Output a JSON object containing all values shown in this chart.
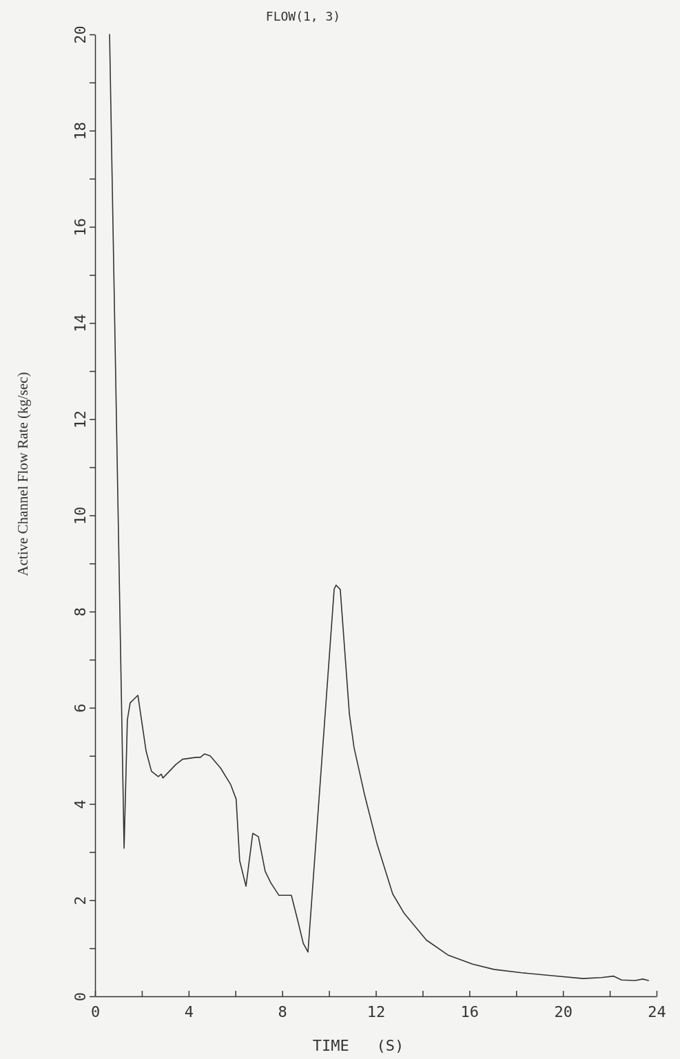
{
  "chart_data": {
    "type": "line",
    "title": "FLOW(1, 3)",
    "xlabel": "TIME   (S)",
    "ylabel": "Active Channel Flow Rate (kg/sec)",
    "xlim": [
      0,
      24
    ],
    "ylim": [
      0,
      20
    ],
    "xticks": [
      0,
      {
        "value": 2,
        "label": null
      },
      4,
      {
        "value": 6,
        "label": null
      },
      8,
      {
        "value": 10,
        "label": null
      },
      12,
      {
        "value": 14,
        "label": null
      },
      16,
      {
        "value": 18,
        "label": null
      },
      20,
      {
        "value": 22,
        "label": null
      },
      24
    ],
    "yticks": [
      0,
      {
        "value": 1,
        "label": null
      },
      2,
      {
        "value": 3,
        "label": null
      },
      4,
      {
        "value": 5,
        "label": null
      },
      6,
      {
        "value": 7,
        "label": null
      },
      8,
      {
        "value": 9,
        "label": null
      },
      10,
      {
        "value": 11,
        "label": null
      },
      12,
      {
        "value": 13,
        "label": null
      },
      14,
      {
        "value": 15,
        "label": null
      },
      16,
      {
        "value": 17,
        "label": null
      },
      18,
      {
        "value": 19,
        "label": null
      },
      20
    ],
    "grid": false,
    "marker": "none",
    "line_style": "solid",
    "series": [
      {
        "color": "#333333",
        "x": [
          0.62,
          1.24,
          1.38,
          1.5,
          1.83,
          2.18,
          2.41,
          2.7,
          2.83,
          2.9,
          3.45,
          3.74,
          4.33,
          4.5,
          4.68,
          4.92,
          5.36,
          5.8,
          6.03,
          6.18,
          6.45,
          6.74,
          6.98,
          7.27,
          7.51,
          7.86,
          8.39,
          8.65,
          8.9,
          9.1,
          10.22,
          10.3,
          10.48,
          10.87,
          11.07,
          11.51,
          12.04,
          12.72,
          13.22,
          14.16,
          15.08,
          16.14,
          17.05,
          18.23,
          19.55,
          20.85,
          21.64,
          22.17,
          22.5,
          23.09,
          23.41,
          23.65
        ],
        "values": [
          20,
          3.08,
          5.75,
          6.1,
          6.26,
          5.1,
          4.68,
          4.57,
          4.62,
          4.54,
          4.82,
          4.93,
          4.97,
          4.97,
          5.04,
          5.0,
          4.75,
          4.4,
          4.1,
          2.82,
          2.29,
          3.39,
          3.32,
          2.6,
          2.36,
          2.1,
          2.1,
          1.6,
          1.1,
          0.92,
          8.47,
          8.55,
          8.46,
          5.87,
          5.17,
          4.21,
          3.19,
          2.13,
          1.72,
          1.17,
          0.86,
          0.67,
          0.56,
          0.49,
          0.43,
          0.37,
          0.39,
          0.42,
          0.34,
          0.33,
          0.36,
          0.33
        ]
      }
    ]
  }
}
